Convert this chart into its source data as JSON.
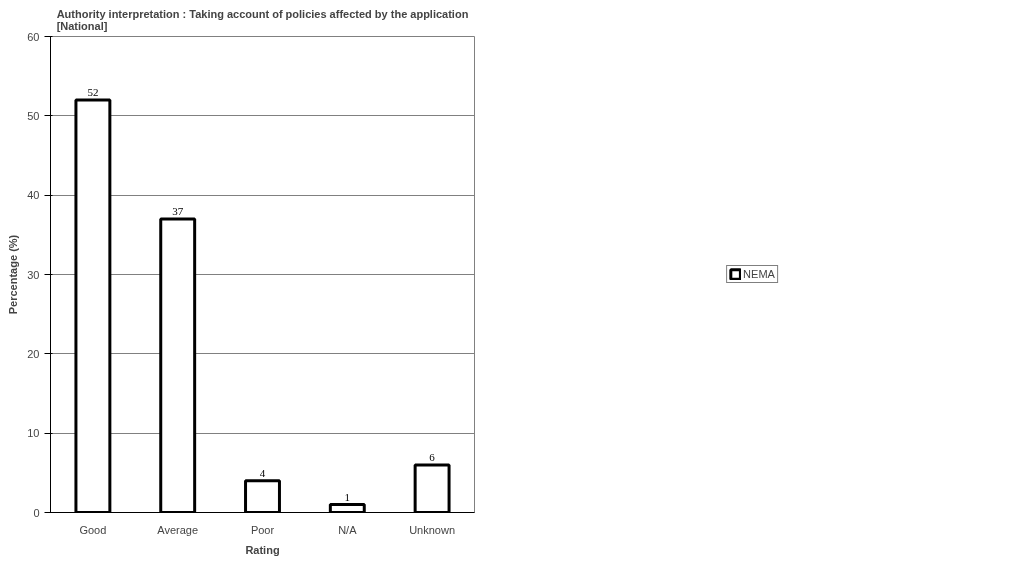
{
  "chart_data": {
    "type": "bar",
    "title": "Authority interpretation : Taking account of policies affected by the application\n[National]",
    "xlabel": "Rating",
    "ylabel": "Percentage (%)",
    "categories": [
      "Good",
      "Average",
      "Poor",
      "N/A",
      "Unknown"
    ],
    "series": [
      {
        "name": "NEMA",
        "color": "#ffffff",
        "values": [
          52,
          37,
          4,
          1,
          6
        ]
      }
    ],
    "ylim": [
      0,
      60
    ],
    "yticks": [
      0,
      10,
      20,
      30,
      40,
      50,
      60
    ],
    "grid": "y",
    "legend": "right",
    "data_labels": true
  }
}
